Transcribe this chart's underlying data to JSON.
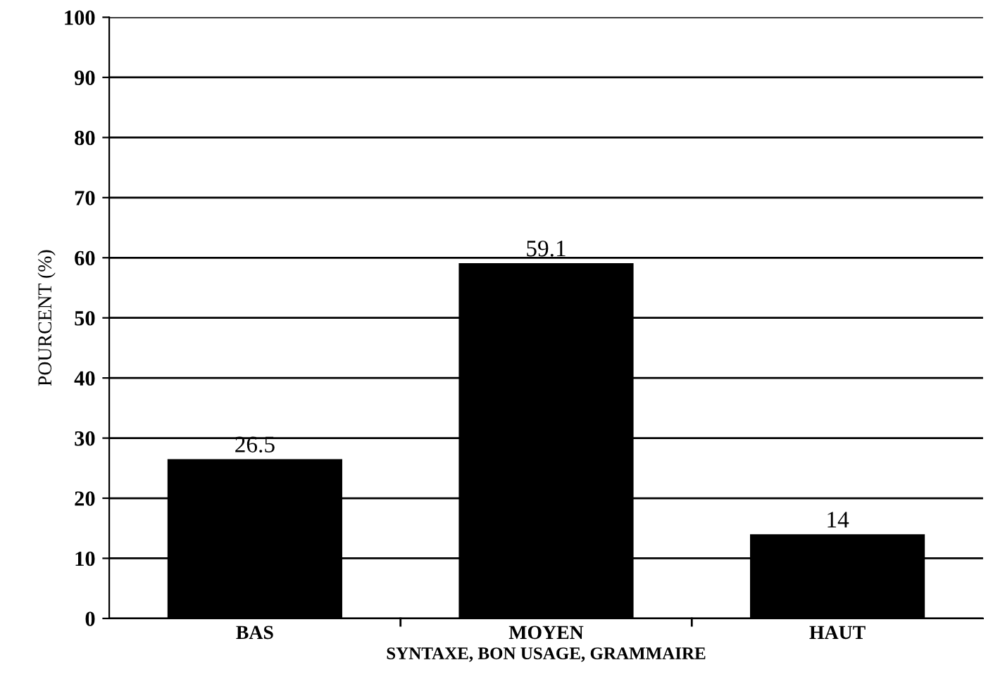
{
  "chart_data": {
    "type": "bar",
    "categories": [
      "BAS",
      "MOYEN",
      "HAUT"
    ],
    "values": [
      26.5,
      59.1,
      14
    ],
    "color": "#000000",
    "data_labels": true,
    "xlabel": "SYNTAXE, BON USAGE, GRAMMAIRE",
    "ylabel": "POURCENT (%)",
    "ylim": [
      0,
      100
    ],
    "yticks": [
      0,
      10,
      20,
      30,
      40,
      50,
      60,
      70,
      80,
      90,
      100
    ],
    "grid": "y",
    "legend": false
  }
}
